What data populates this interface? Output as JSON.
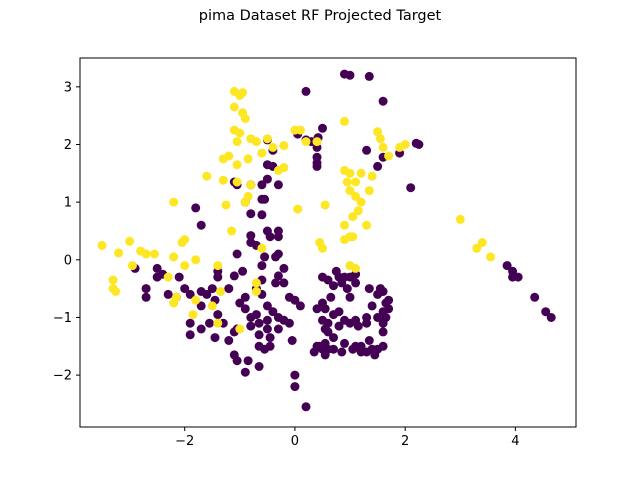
{
  "chart_data": {
    "type": "scatter",
    "title": "pima Dataset RF Projected Target",
    "xlabel": "",
    "ylabel": "",
    "xlim": [
      -3.9,
      5.1
    ],
    "ylim": [
      -2.9,
      3.5
    ],
    "x_ticks": [
      -2,
      0,
      2,
      4
    ],
    "y_ticks": [
      -2,
      -1,
      0,
      1,
      2,
      3
    ],
    "grid": false,
    "colors": {
      "class_0": "#440154",
      "class_1": "#fde725"
    },
    "series": [
      {
        "class": 0,
        "points": [
          [
            0.9,
            3.22
          ],
          [
            1.0,
            3.2
          ],
          [
            1.35,
            3.18
          ],
          [
            1.6,
            2.75
          ],
          [
            0.2,
            2.92
          ],
          [
            0.5,
            2.28
          ],
          [
            0.05,
            2.18
          ],
          [
            0.2,
            2.08
          ],
          [
            0.3,
            2.05
          ],
          [
            0.42,
            2.12
          ],
          [
            0.4,
            1.62
          ],
          [
            0.4,
            1.95
          ],
          [
            0.4,
            1.78
          ],
          [
            0.4,
            1.68
          ],
          [
            1.3,
            1.9
          ],
          [
            1.6,
            1.78
          ],
          [
            1.5,
            1.62
          ],
          [
            -0.5,
            2.08
          ],
          [
            -0.4,
            1.9
          ],
          [
            -0.5,
            1.65
          ],
          [
            -0.4,
            1.62
          ],
          [
            -0.5,
            1.4
          ],
          [
            -0.8,
            1.3
          ],
          [
            -0.6,
            1.3
          ],
          [
            -0.3,
            1.3
          ],
          [
            -1.1,
            1.35
          ],
          [
            -1.05,
            1.3
          ],
          [
            -0.6,
            1.05
          ],
          [
            -0.9,
            1.0
          ],
          [
            -0.55,
            1.05
          ],
          [
            -0.8,
            0.8
          ],
          [
            -0.6,
            0.78
          ],
          [
            -1.8,
            0.9
          ],
          [
            -1.7,
            0.6
          ],
          [
            -0.5,
            0.5
          ],
          [
            -0.8,
            0.42
          ],
          [
            -0.3,
            0.5
          ],
          [
            -0.45,
            0.4
          ],
          [
            -0.3,
            0.4
          ],
          [
            -0.8,
            0.3
          ],
          [
            -0.7,
            0.25
          ],
          [
            -1.05,
            0.1
          ],
          [
            -0.55,
            0.05
          ],
          [
            -0.3,
            0.1
          ],
          [
            -0.35,
            0.05
          ],
          [
            -0.95,
            -0.2
          ],
          [
            -0.6,
            -0.1
          ],
          [
            -0.2,
            -0.15
          ],
          [
            -1.4,
            -0.2
          ],
          [
            -1.4,
            -0.3
          ],
          [
            -1.1,
            -0.28
          ],
          [
            -0.6,
            -0.35
          ],
          [
            -0.3,
            -0.28
          ],
          [
            -0.2,
            -0.4
          ],
          [
            -0.35,
            -0.4
          ],
          [
            -2.9,
            -0.15
          ],
          [
            -2.5,
            -0.15
          ],
          [
            -2.5,
            -0.3
          ],
          [
            -2.4,
            -0.25
          ],
          [
            -2.3,
            -0.6
          ],
          [
            -2.1,
            -0.3
          ],
          [
            -2.0,
            -0.5
          ],
          [
            -2.7,
            -0.5
          ],
          [
            -2.7,
            -0.65
          ],
          [
            -2.15,
            -0.65
          ],
          [
            -1.9,
            -0.6
          ],
          [
            -1.7,
            -0.55
          ],
          [
            -1.5,
            -0.5
          ],
          [
            -1.2,
            -0.5
          ],
          [
            -1.45,
            -0.7
          ],
          [
            -1.6,
            -0.6
          ],
          [
            -1.7,
            -0.8
          ],
          [
            -1.4,
            -0.95
          ],
          [
            -1.55,
            -1.1
          ],
          [
            -1.3,
            -1.1
          ],
          [
            -1.0,
            -0.75
          ],
          [
            -0.9,
            -0.65
          ],
          [
            -0.7,
            -0.5
          ],
          [
            -0.6,
            -0.6
          ],
          [
            -0.9,
            -0.85
          ],
          [
            -0.8,
            -1.0
          ],
          [
            -0.7,
            -0.95
          ],
          [
            -0.5,
            -0.8
          ],
          [
            -0.4,
            -0.9
          ],
          [
            -0.3,
            -1.0
          ],
          [
            -0.2,
            -1.05
          ],
          [
            -0.1,
            -0.65
          ],
          [
            0.0,
            -0.7
          ],
          [
            0.1,
            -0.8
          ],
          [
            -0.5,
            -1.05
          ],
          [
            -0.65,
            -1.1
          ],
          [
            -0.8,
            -1.15
          ],
          [
            -0.5,
            -1.2
          ],
          [
            -0.3,
            -1.2
          ],
          [
            -0.1,
            -1.1
          ],
          [
            -0.65,
            -1.3
          ],
          [
            -0.45,
            -1.35
          ],
          [
            -1.1,
            -1.25
          ],
          [
            -1.05,
            -1.2
          ],
          [
            -1.9,
            -1.1
          ],
          [
            -1.9,
            -1.3
          ],
          [
            -1.7,
            -1.2
          ],
          [
            -1.45,
            -1.35
          ],
          [
            -0.65,
            -1.5
          ],
          [
            -0.55,
            -1.55
          ],
          [
            -0.45,
            -1.5
          ],
          [
            -0.65,
            -1.85
          ],
          [
            -0.85,
            -1.75
          ],
          [
            -1.05,
            -1.75
          ],
          [
            -1.1,
            -1.65
          ],
          [
            -0.9,
            -1.95
          ],
          [
            -0.05,
            -1.4
          ],
          [
            0.0,
            -2.0
          ],
          [
            0.0,
            -2.2
          ],
          [
            0.2,
            -2.55
          ],
          [
            0.4,
            -0.85
          ],
          [
            0.5,
            -0.75
          ],
          [
            0.5,
            -0.3
          ],
          [
            0.6,
            -0.35
          ],
          [
            0.7,
            -0.45
          ],
          [
            0.65,
            -0.65
          ],
          [
            0.55,
            -0.85
          ],
          [
            0.5,
            -1.05
          ],
          [
            0.6,
            -1.1
          ],
          [
            0.7,
            -0.95
          ],
          [
            0.8,
            -0.9
          ],
          [
            0.75,
            -0.2
          ],
          [
            0.8,
            -0.3
          ],
          [
            0.85,
            -0.4
          ],
          [
            0.9,
            -0.3
          ],
          [
            0.95,
            -0.5
          ],
          [
            1.0,
            -0.65
          ],
          [
            1.1,
            -0.25
          ],
          [
            1.1,
            -0.4
          ],
          [
            1.0,
            -0.3
          ],
          [
            0.9,
            -1.05
          ],
          [
            1.0,
            -1.1
          ],
          [
            1.1,
            -1.05
          ],
          [
            1.15,
            -1.15
          ],
          [
            1.3,
            -1.0
          ],
          [
            1.3,
            -1.1
          ],
          [
            1.4,
            -0.8
          ],
          [
            1.35,
            -0.5
          ],
          [
            1.5,
            -0.6
          ],
          [
            1.55,
            -0.5
          ],
          [
            1.6,
            -0.55
          ],
          [
            1.65,
            -0.75
          ],
          [
            1.7,
            -0.7
          ],
          [
            1.6,
            -0.9
          ],
          [
            1.65,
            -1.0
          ],
          [
            1.7,
            -0.85
          ],
          [
            1.6,
            -1.1
          ],
          [
            1.5,
            -1.0
          ],
          [
            1.6,
            -1.25
          ],
          [
            1.6,
            -1.5
          ],
          [
            1.5,
            -1.55
          ],
          [
            1.45,
            -1.65
          ],
          [
            1.3,
            -1.6
          ],
          [
            1.2,
            -1.5
          ],
          [
            1.2,
            -1.6
          ],
          [
            1.1,
            -1.5
          ],
          [
            1.05,
            -1.55
          ],
          [
            0.9,
            -1.45
          ],
          [
            0.85,
            -1.6
          ],
          [
            0.7,
            -1.55
          ],
          [
            0.6,
            -1.55
          ],
          [
            0.55,
            -1.65
          ],
          [
            0.5,
            -1.55
          ],
          [
            0.45,
            -1.5
          ],
          [
            0.4,
            -1.5
          ],
          [
            0.35,
            -1.6
          ],
          [
            0.55,
            -1.45
          ],
          [
            0.6,
            -1.25
          ],
          [
            0.7,
            -1.35
          ],
          [
            1.35,
            -1.4
          ],
          [
            1.4,
            -1.55
          ],
          [
            -1.2,
            -1.4
          ],
          [
            0.55,
            -1.2
          ],
          [
            0.8,
            -1.15
          ],
          [
            2.2,
            2.02
          ],
          [
            2.25,
            2.0
          ],
          [
            1.9,
            1.85
          ],
          [
            2.1,
            1.25
          ],
          [
            3.85,
            -0.1
          ],
          [
            3.95,
            -0.2
          ],
          [
            3.95,
            -0.3
          ],
          [
            4.05,
            -0.3
          ],
          [
            4.35,
            -0.65
          ],
          [
            4.55,
            -0.9
          ],
          [
            4.65,
            -1.0
          ]
        ]
      },
      {
        "class": 1,
        "points": [
          [
            -1.1,
            2.92
          ],
          [
            -1.0,
            2.85
          ],
          [
            -0.95,
            2.9
          ],
          [
            -1.1,
            2.65
          ],
          [
            -0.95,
            2.55
          ],
          [
            -0.9,
            2.45
          ],
          [
            -1.1,
            2.25
          ],
          [
            -1.0,
            2.2
          ],
          [
            -1.05,
            2.05
          ],
          [
            -0.8,
            2.1
          ],
          [
            -0.7,
            2.05
          ],
          [
            -0.5,
            2.1
          ],
          [
            -1.2,
            1.8
          ],
          [
            -1.3,
            1.75
          ],
          [
            -1.05,
            1.65
          ],
          [
            -0.85,
            1.75
          ],
          [
            -0.6,
            1.85
          ],
          [
            -0.4,
            1.95
          ],
          [
            -0.2,
            1.98
          ],
          [
            0.0,
            2.25
          ],
          [
            0.1,
            2.25
          ],
          [
            0.2,
            2.05
          ],
          [
            0.4,
            2.05
          ],
          [
            0.9,
            2.4
          ],
          [
            1.5,
            2.22
          ],
          [
            1.55,
            2.1
          ],
          [
            1.6,
            1.95
          ],
          [
            1.7,
            1.8
          ],
          [
            2.0,
            2.0
          ],
          [
            1.9,
            1.95
          ],
          [
            -1.6,
            1.45
          ],
          [
            -1.3,
            1.38
          ],
          [
            -1.05,
            1.35
          ],
          [
            -0.8,
            1.3
          ],
          [
            -0.85,
            1.1
          ],
          [
            -0.9,
            1.0
          ],
          [
            -0.2,
            1.6
          ],
          [
            -0.3,
            1.55
          ],
          [
            0.9,
            1.55
          ],
          [
            1.0,
            1.5
          ],
          [
            1.1,
            1.35
          ],
          [
            1.2,
            1.5
          ],
          [
            1.35,
            1.2
          ],
          [
            1.4,
            1.45
          ],
          [
            0.95,
            1.35
          ],
          [
            1.0,
            1.2
          ],
          [
            1.1,
            1.1
          ],
          [
            1.2,
            1.0
          ],
          [
            1.05,
            0.75
          ],
          [
            1.15,
            0.85
          ],
          [
            1.3,
            0.6
          ],
          [
            0.9,
            0.6
          ],
          [
            -2.2,
            1.0
          ],
          [
            -1.25,
            0.95
          ],
          [
            -1.15,
            0.5
          ],
          [
            -2.0,
            0.35
          ],
          [
            -2.05,
            0.3
          ],
          [
            0.05,
            0.88
          ],
          [
            0.55,
            0.95
          ],
          [
            0.45,
            0.3
          ],
          [
            0.5,
            0.2
          ],
          [
            0.9,
            0.35
          ],
          [
            1.0,
            0.4
          ],
          [
            1.05,
            0.4
          ],
          [
            1.0,
            -0.1
          ],
          [
            1.1,
            -0.15
          ],
          [
            -0.6,
            0.2
          ],
          [
            -2.8,
            0.15
          ],
          [
            -2.7,
            0.1
          ],
          [
            -2.55,
            0.1
          ],
          [
            -3.5,
            0.25
          ],
          [
            -3.2,
            0.12
          ],
          [
            -3.0,
            0.32
          ],
          [
            -2.95,
            -0.1
          ],
          [
            -3.3,
            -0.35
          ],
          [
            -3.25,
            -0.55
          ],
          [
            -3.3,
            -0.5
          ],
          [
            -2.2,
            0.05
          ],
          [
            -2.0,
            -0.1
          ],
          [
            -2.3,
            -0.3
          ],
          [
            -1.8,
            0.0
          ],
          [
            -1.4,
            -0.1
          ],
          [
            -2.2,
            -0.75
          ],
          [
            -2.15,
            -0.65
          ],
          [
            -1.85,
            -0.95
          ],
          [
            -1.8,
            -0.7
          ],
          [
            -1.5,
            -0.8
          ],
          [
            -1.4,
            -1.1
          ],
          [
            -1.35,
            -0.55
          ],
          [
            -1.0,
            -1.2
          ],
          [
            -0.7,
            -0.4
          ],
          [
            -0.7,
            -0.55
          ],
          [
            3.0,
            0.7
          ],
          [
            3.3,
            0.2
          ],
          [
            3.4,
            0.3
          ],
          [
            3.55,
            0.05
          ]
        ]
      }
    ]
  }
}
